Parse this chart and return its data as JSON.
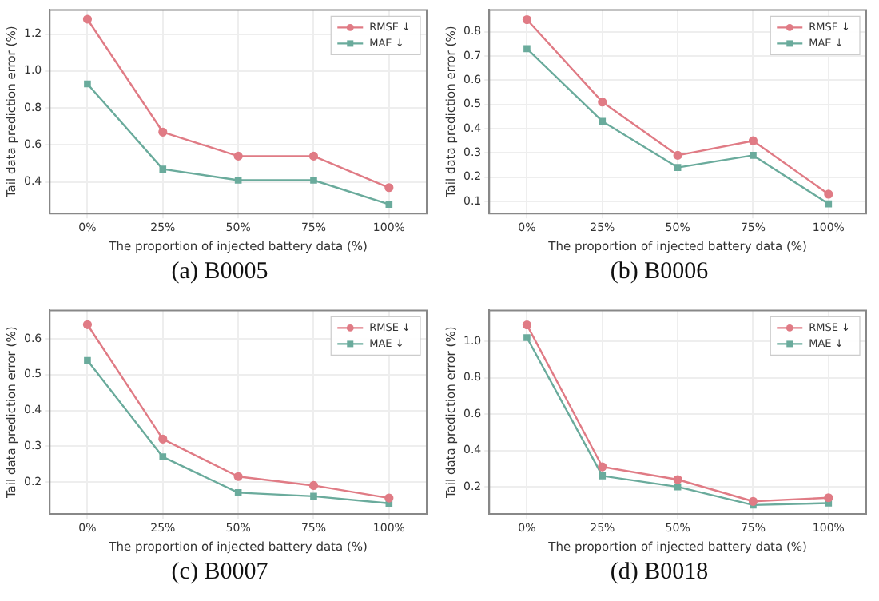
{
  "chart_data": [
    {
      "type": "line",
      "title": "(a) B0005",
      "xlabel": "The proportion of injected battery data (%)",
      "ylabel": "Tail data prediction error (%)",
      "categories": [
        "0%",
        "25%",
        "50%",
        "75%",
        "100%"
      ],
      "ylim": [
        0.23,
        1.33
      ],
      "yticks": [
        0.4,
        0.6,
        0.8,
        {
          "value": 1,
          "label": "1.0"
        },
        1.2
      ],
      "grid": true,
      "legend": "top right",
      "series": [
        {
          "name": "RMSE ↓",
          "color": "#e07b85",
          "marker": "circle",
          "values": [
            1.28,
            0.67,
            0.54,
            0.54,
            0.37
          ]
        },
        {
          "name": "MAE ↓",
          "color": "#6aab9c",
          "marker": "square",
          "values": [
            0.93,
            0.47,
            0.41,
            0.41,
            0.28
          ]
        }
      ]
    },
    {
      "type": "line",
      "title": "(b) B0006",
      "xlabel": "The proportion of injected battery data (%)",
      "ylabel": "Tail data prediction error (%)",
      "categories": [
        "0%",
        "25%",
        "50%",
        "75%",
        "100%"
      ],
      "ylim": [
        0.05,
        0.89
      ],
      "yticks": [
        0.1,
        0.2,
        0.3,
        0.4,
        0.5,
        0.6,
        0.7,
        0.8
      ],
      "grid": true,
      "legend": "top right",
      "series": [
        {
          "name": "RMSE ↓",
          "color": "#e07b85",
          "marker": "circle",
          "values": [
            0.85,
            0.51,
            0.29,
            0.35,
            0.13
          ]
        },
        {
          "name": "MAE ↓",
          "color": "#6aab9c",
          "marker": "square",
          "values": [
            0.73,
            0.43,
            0.24,
            0.29,
            0.09
          ]
        }
      ]
    },
    {
      "type": "line",
      "title": "(c) B0007",
      "xlabel": "The proportion of injected battery data (%)",
      "ylabel": "Tail data prediction error (%)",
      "categories": [
        "0%",
        "25%",
        "50%",
        "75%",
        "100%"
      ],
      "ylim": [
        0.11,
        0.68
      ],
      "yticks": [
        0.2,
        0.3,
        0.4,
        0.5,
        0.6
      ],
      "grid": true,
      "legend": "top right",
      "series": [
        {
          "name": "RMSE ↓",
          "color": "#e07b85",
          "marker": "circle",
          "values": [
            0.64,
            0.32,
            0.215,
            0.19,
            0.155
          ]
        },
        {
          "name": "MAE ↓",
          "color": "#6aab9c",
          "marker": "square",
          "values": [
            0.54,
            0.27,
            0.17,
            0.16,
            0.14
          ]
        }
      ]
    },
    {
      "type": "line",
      "title": "(d) B0018",
      "xlabel": "The proportion of injected battery data (%)",
      "ylabel": "Tail data prediction error (%)",
      "categories": [
        "0%",
        "25%",
        "50%",
        "75%",
        "100%"
      ],
      "ylim": [
        0.05,
        1.17
      ],
      "yticks": [
        0.2,
        0.4,
        0.6,
        0.8,
        {
          "value": 1,
          "label": "1.0"
        }
      ],
      "grid": true,
      "legend": "top right",
      "series": [
        {
          "name": "RMSE ↓",
          "color": "#e07b85",
          "marker": "circle",
          "values": [
            1.09,
            0.31,
            0.24,
            0.12,
            0.14
          ]
        },
        {
          "name": "MAE ↓",
          "color": "#6aab9c",
          "marker": "square",
          "values": [
            1.02,
            0.26,
            0.2,
            0.1,
            0.11
          ]
        }
      ]
    }
  ]
}
